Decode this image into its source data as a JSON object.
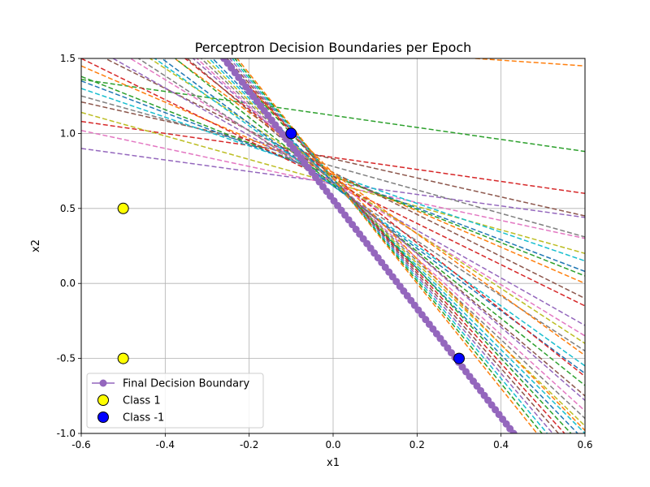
{
  "chart_data": {
    "type": "line",
    "title": "Perceptron Decision Boundaries per Epoch",
    "xlabel": "x1",
    "ylabel": "x2",
    "xlim": [
      -0.6,
      0.6
    ],
    "ylim": [
      -1.0,
      1.5
    ],
    "xticks": [
      "-0.6",
      "-0.4",
      "-0.2",
      "0.0",
      "0.2",
      "0.4",
      "0.6"
    ],
    "yticks": [
      "-1.0",
      "-0.5",
      "0.0",
      "0.5",
      "1.0",
      "1.5"
    ],
    "grid": true,
    "legend_position": "lower-left",
    "epoch_lines": [
      {
        "color": "#ff7f0e",
        "y_at_xmin": 1.68,
        "y_at_xmax": 1.45
      },
      {
        "color": "#2ca02c",
        "y_at_xmin": 1.36,
        "y_at_xmax": 0.88
      },
      {
        "color": "#d62728",
        "y_at_xmin": 1.08,
        "y_at_xmax": 0.6
      },
      {
        "color": "#8c564b",
        "y_at_xmin": 1.21,
        "y_at_xmax": 0.45
      },
      {
        "color": "#9467bd",
        "y_at_xmin": 0.9,
        "y_at_xmax": 0.44
      },
      {
        "color": "#e377c2",
        "y_at_xmin": 1.02,
        "y_at_xmax": 0.3
      },
      {
        "color": "#7f7f7f",
        "y_at_xmin": 1.25,
        "y_at_xmax": 0.31
      },
      {
        "color": "#bcbd22",
        "y_at_xmin": 1.14,
        "y_at_xmax": 0.2
      },
      {
        "color": "#17becf",
        "y_at_xmin": 1.3,
        "y_at_xmax": 0.15
      },
      {
        "color": "#1f77b4",
        "y_at_xmin": 1.35,
        "y_at_xmax": 0.08
      },
      {
        "color": "#ff7f0e",
        "y_at_xmin": 1.45,
        "y_at_xmax": 0.0
      },
      {
        "color": "#2ca02c",
        "y_at_xmin": 1.38,
        "y_at_xmax": 0.05
      },
      {
        "color": "#d62728",
        "y_at_xmin": 1.5,
        "y_at_xmax": -0.15
      },
      {
        "color": "#8c564b",
        "y_at_xmin": 1.58,
        "y_at_xmax": -0.1
      },
      {
        "color": "#9467bd",
        "y_at_xmin": 1.62,
        "y_at_xmax": -0.28
      },
      {
        "color": "#e377c2",
        "y_at_xmin": 1.7,
        "y_at_xmax": -0.35
      },
      {
        "color": "#7f7f7f",
        "y_at_xmin": 1.75,
        "y_at_xmax": -0.45
      },
      {
        "color": "#bcbd22",
        "y_at_xmin": 1.8,
        "y_at_xmax": -0.4
      },
      {
        "color": "#17becf",
        "y_at_xmin": 1.85,
        "y_at_xmax": -0.55
      },
      {
        "color": "#1f77b4",
        "y_at_xmin": 1.9,
        "y_at_xmax": -0.6
      },
      {
        "color": "#ff7f0e",
        "y_at_xmin": 1.95,
        "y_at_xmax": -0.48
      },
      {
        "color": "#2ca02c",
        "y_at_xmin": 2.0,
        "y_at_xmax": -0.68
      },
      {
        "color": "#d62728",
        "y_at_xmin": 2.05,
        "y_at_xmax": -0.62
      },
      {
        "color": "#8c564b",
        "y_at_xmin": 2.1,
        "y_at_xmax": -0.75
      },
      {
        "color": "#9467bd",
        "y_at_xmin": 2.15,
        "y_at_xmax": -0.78
      },
      {
        "color": "#e377c2",
        "y_at_xmin": 2.2,
        "y_at_xmax": -0.85
      },
      {
        "color": "#7f7f7f",
        "y_at_xmin": 2.25,
        "y_at_xmax": -0.9
      },
      {
        "color": "#bcbd22",
        "y_at_xmin": 2.3,
        "y_at_xmax": -0.95
      },
      {
        "color": "#17becf",
        "y_at_xmin": 2.35,
        "y_at_xmax": -1.0
      },
      {
        "color": "#1f77b4",
        "y_at_xmin": 2.4,
        "y_at_xmax": -1.05
      },
      {
        "color": "#ff7f0e",
        "y_at_xmin": 2.45,
        "y_at_xmax": -0.98
      },
      {
        "color": "#2ca02c",
        "y_at_xmin": 2.5,
        "y_at_xmax": -1.1
      },
      {
        "color": "#d62728",
        "y_at_xmin": 2.55,
        "y_at_xmax": -1.15
      },
      {
        "color": "#8c564b",
        "y_at_xmin": 2.6,
        "y_at_xmax": -1.2
      },
      {
        "color": "#9467bd",
        "y_at_xmin": 2.65,
        "y_at_xmax": -1.25
      },
      {
        "color": "#17becf",
        "y_at_xmin": 2.7,
        "y_at_xmax": -1.3
      },
      {
        "color": "#2ca02c",
        "y_at_xmin": 2.75,
        "y_at_xmax": -1.35
      },
      {
        "color": "#ff7f0e",
        "y_at_xmin": 2.8,
        "y_at_xmax": -1.4
      }
    ],
    "final_boundary": {
      "name": "Final Decision Boundary",
      "color": "#9467bd",
      "p1": [
        -0.26,
        1.5
      ],
      "p2": [
        0.43,
        -1.0
      ],
      "marker_count": 80
    },
    "points": [
      {
        "class": "Class 1",
        "x": -0.5,
        "y": 0.5,
        "color": "#ffff00"
      },
      {
        "class": "Class 1",
        "x": -0.5,
        "y": -0.5,
        "color": "#ffff00"
      },
      {
        "class": "Class -1",
        "x": -0.1,
        "y": 1.0,
        "color": "#0000ff"
      },
      {
        "class": "Class -1",
        "x": 0.3,
        "y": -0.5,
        "color": "#0000ff"
      }
    ],
    "legend": [
      {
        "label": "Final Decision Boundary",
        "kind": "line-marker",
        "color": "#9467bd"
      },
      {
        "label": "Class 1",
        "kind": "marker",
        "color": "#ffff00"
      },
      {
        "label": "Class -1",
        "kind": "marker",
        "color": "#0000ff"
      }
    ]
  }
}
